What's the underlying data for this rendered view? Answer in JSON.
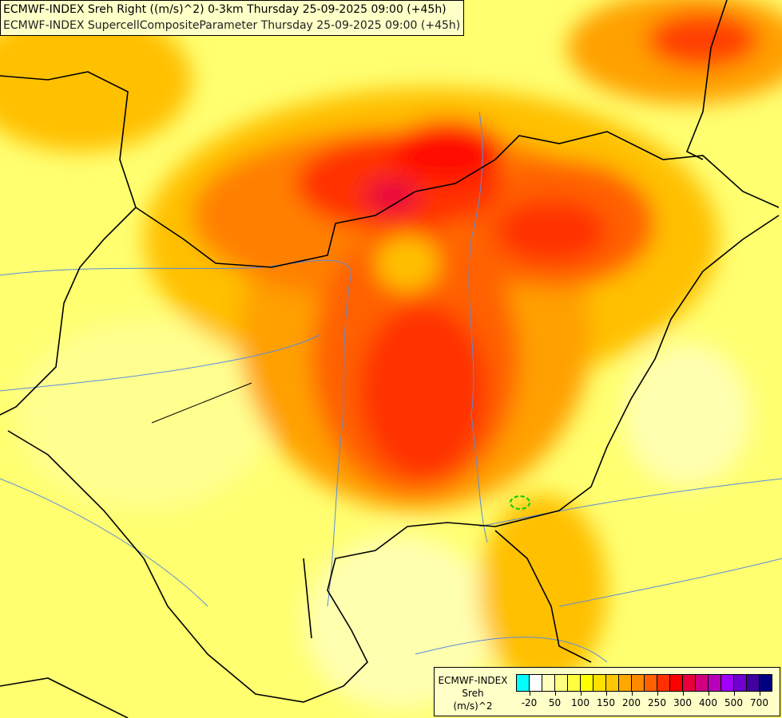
{
  "title_lines": [
    "ECMWF-INDEX Sreh Right ((m/s)^2) 0-3km Thursday 25-09-2025 09:00 (+45h)",
    "ECMWF-INDEX SupercellCompositeParameter Thursday 25-09-2025 09:00 (+45h)"
  ],
  "legend": {
    "name": "ECMWF-INDEX",
    "variable": "Sreh",
    "unit": "(m/s)^2",
    "colors": [
      "#00ffff",
      "#ffffff",
      "#ffffc0",
      "#ffff80",
      "#ffff40",
      "#ffff00",
      "#ffe000",
      "#ffc800",
      "#ffa800",
      "#ff8800",
      "#ff6000",
      "#ff3000",
      "#ff0000",
      "#e8003c",
      "#d00080",
      "#b800b8",
      "#a000ff",
      "#7000d0",
      "#4000a0",
      "#000080"
    ],
    "tick_labels": [
      "-20",
      "50",
      "100",
      "150",
      "200",
      "250",
      "300",
      "400",
      "500",
      "700"
    ]
  },
  "colors": {
    "border": "#000000",
    "river": "#5a8cdc",
    "scp_contour": "#00cc00"
  }
}
